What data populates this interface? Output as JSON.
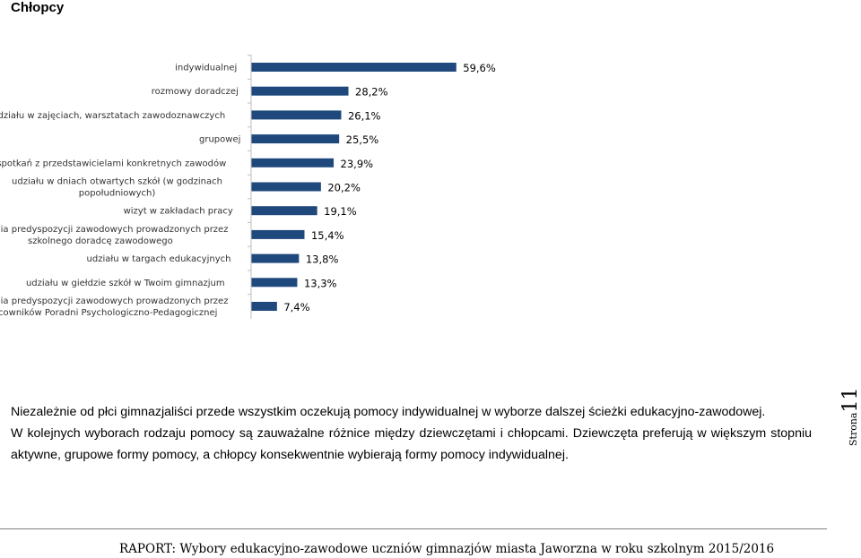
{
  "section_title": "Chłopcy",
  "chart_data": {
    "type": "bar",
    "orientation": "horizontal",
    "bar_color": "#1f497d",
    "axis_color": "#bfbfbf",
    "value_suffix": "%",
    "xlim": [
      0,
      70
    ],
    "grid": false,
    "categories": [
      "indywidualnej",
      "rozmowy doradczej",
      "udziału w zajęciach, warsztatach zawodoznawczych",
      "grupowej",
      "spotkań z przedstawicielami konkretnych zawodów",
      "udziału w dniach otwartych szkół (w godzinach popołudniowych)",
      "wizyt w zakładach pracy",
      "badania predyspozycji zawodowych prowadzonych przez szkolnego doradcę zawodowego",
      "udziału w targach edukacyjnych",
      "udziału w giełdzie szkół w Twoim gimnazjum",
      "badania predyspozycji zawodowych prowadzonych przez pracowników Poradni Psychologiczno-Pedagogicznej"
    ],
    "label_lines": [
      [
        "indywidualnej"
      ],
      [
        "rozmowy doradczej"
      ],
      [
        "udziału w zajęciach, warsztatach zawodoznawczych"
      ],
      [
        "grupowej"
      ],
      [
        "spotkań z przedstawicielami konkretnych zawodów"
      ],
      [
        "udziału w dniach otwartych szkół (w godzinach",
        "popołudniowych)"
      ],
      [
        "wizyt w zakładach pracy"
      ],
      [
        "badania predyspozycji zawodowych prowadzonych przez",
        "szkolnego doradcę zawodowego"
      ],
      [
        "udziału w targach edukacyjnych"
      ],
      [
        "udziału w giełdzie szkół w Twoim gimnazjum"
      ],
      [
        "badania predyspozycji zawodowych prowadzonych przez",
        "pracowników Poradni Psychologiczno-Pedagogicznej"
      ]
    ],
    "values": [
      59.6,
      28.2,
      26.1,
      25.5,
      23.9,
      20.2,
      19.1,
      15.4,
      13.8,
      13.3,
      7.4
    ],
    "value_labels": [
      "59,6%",
      "28,2%",
      "26,1%",
      "25,5%",
      "23,9%",
      "20,2%",
      "19,1%",
      "15,4%",
      "13,8%",
      "13,3%",
      "7,4%"
    ]
  },
  "paragraph": {
    "line1": "Niezależnie od płci gimnazjaliści przede wszystkim oczekują pomocy indywidualnej w wyborze dalszej ścieżki edukacyjno-zawodowej.",
    "line2": "W kolejnych wyborach rodzaju pomocy są zauważalne różnice między dziewczętami i chłopcami. Dziewczęta preferują w większym stopniu aktywne, grupowe formy pomocy, a chłopcy konsekwentnie wybierają formy pomocy indywidualnej."
  },
  "page_side": {
    "word": "Strona",
    "number": "11"
  },
  "footer": {
    "text": "RAPORT: Wybory edukacyjno-zawodowe uczniów gimnazjów miasta Jaworzna w roku szkolnym 2015/2016"
  }
}
